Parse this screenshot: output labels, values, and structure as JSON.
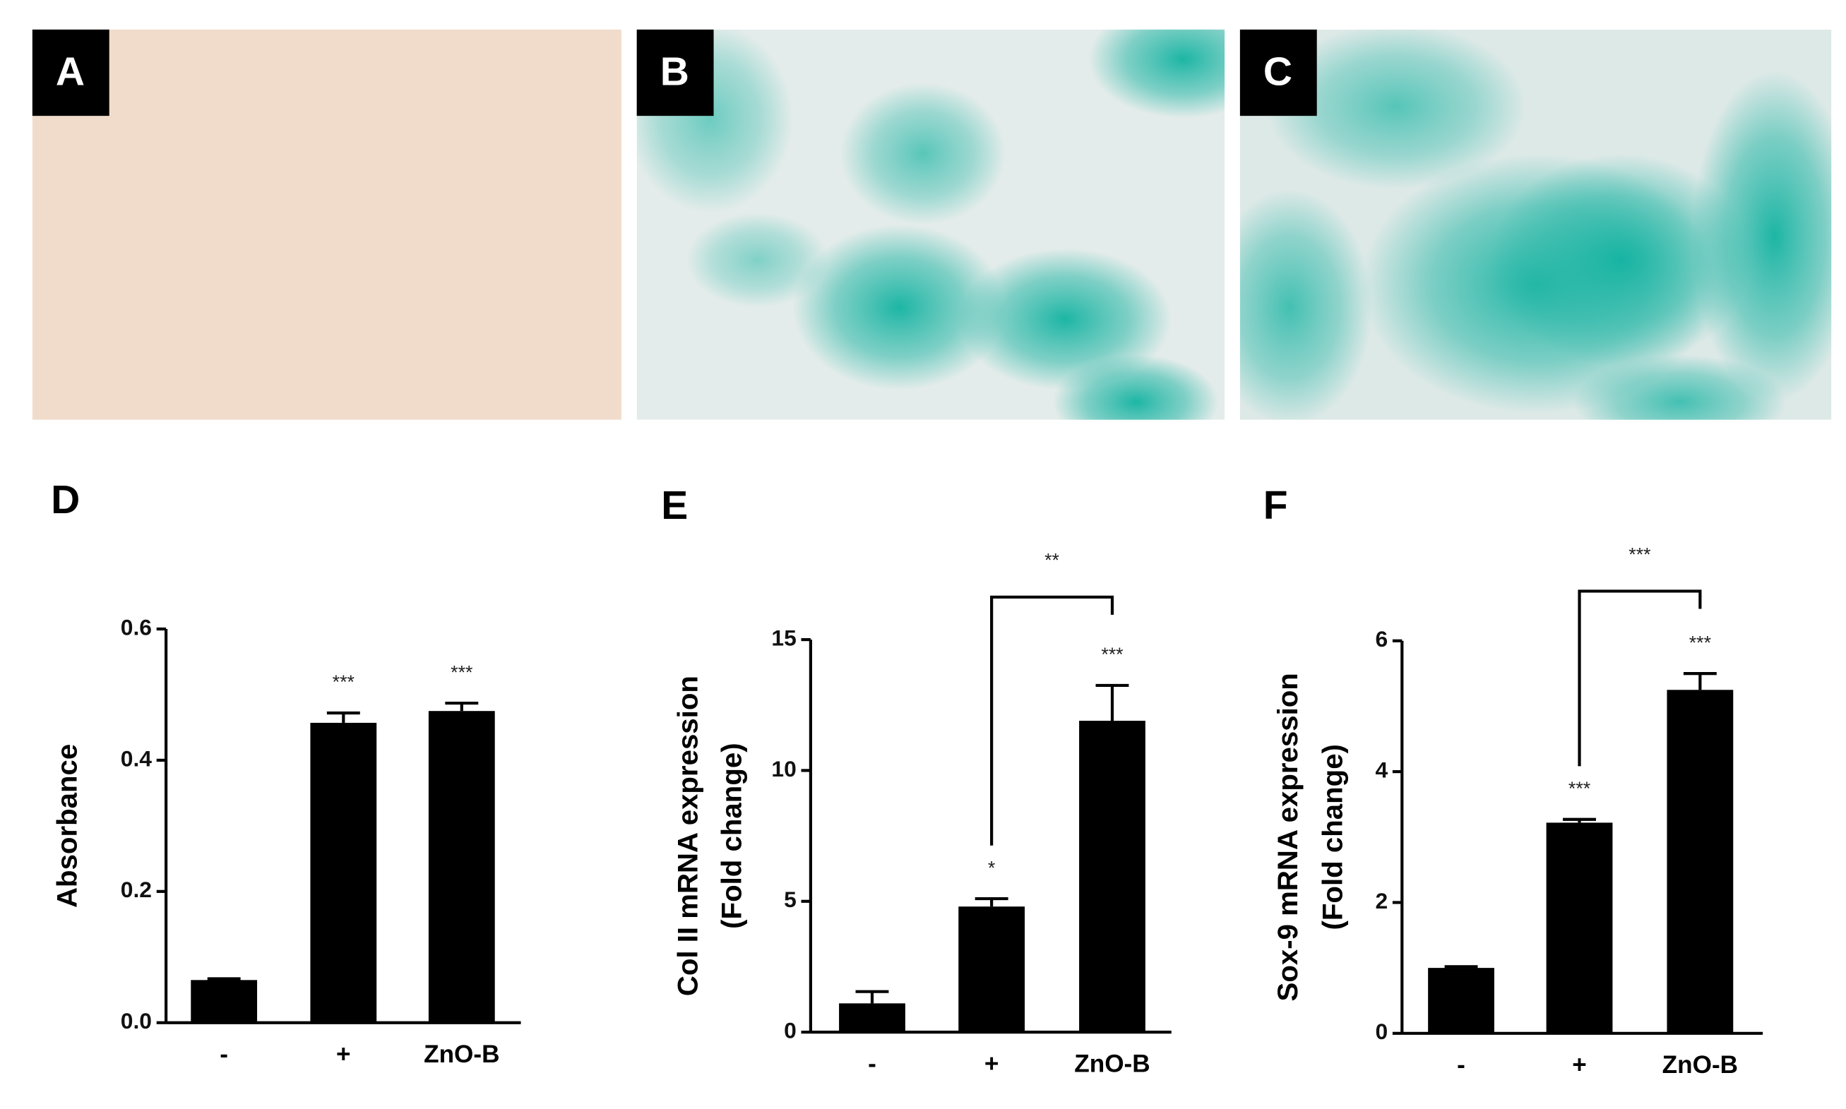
{
  "images": {
    "labels": [
      "A",
      "B",
      "C"
    ]
  },
  "chart_data": [
    {
      "type": "bar",
      "panel": "D",
      "ylabel": [
        "Absorbance"
      ],
      "categories": [
        "-",
        "+",
        "ZnO-B"
      ],
      "values": [
        0.065,
        0.457,
        0.475
      ],
      "errors": [
        0.002,
        0.015,
        0.012
      ],
      "annotations": [
        null,
        "***",
        "***"
      ],
      "color": "#000000",
      "ylim": [
        0,
        0.6
      ],
      "yticks": [
        {
          "value": 0,
          "label": "0.0"
        },
        {
          "value": 0.2,
          "label": "0.2"
        },
        {
          "value": 0.4,
          "label": "0.4"
        },
        {
          "value": 0.6,
          "label": "0.6"
        }
      ]
    },
    {
      "type": "bar",
      "panel": "E",
      "ylabel": [
        "Col II mRNA expression",
        "(Fold change)"
      ],
      "categories": [
        "-",
        "+",
        "ZnO-B"
      ],
      "values": [
        1.1,
        4.8,
        11.9
      ],
      "errors": [
        0.45,
        0.3,
        1.35
      ],
      "annotations": [
        null,
        "*",
        "***"
      ],
      "comparison_label": "**",
      "color": "#000000",
      "ylim": [
        0,
        15
      ],
      "yticks": [
        0,
        5,
        10,
        15
      ]
    },
    {
      "type": "bar",
      "panel": "F",
      "ylabel": [
        "Sox-9 mRNA expression",
        "(Fold change)"
      ],
      "categories": [
        "-",
        "+",
        "ZnO-B"
      ],
      "values": [
        1.0,
        3.22,
        5.25
      ],
      "errors": [
        0.02,
        0.05,
        0.25
      ],
      "annotations": [
        null,
        "***",
        "***"
      ],
      "comparison_label": "***",
      "color": "#000000",
      "ylim": [
        0,
        6
      ],
      "yticks": [
        0,
        2,
        4,
        6
      ]
    }
  ]
}
